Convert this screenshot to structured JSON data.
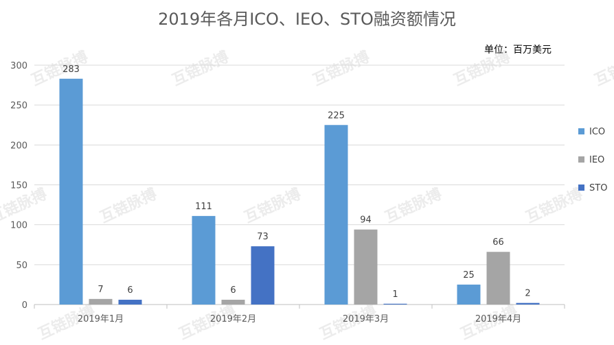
{
  "chart_data": {
    "type": "bar",
    "title": "2019年各月ICO、IEO、STO融资额情况",
    "unit_label": "单位：百万美元",
    "categories": [
      "2019年1月",
      "2019年2月",
      "2019年3月",
      "2019年4月"
    ],
    "series": [
      {
        "name": "ICO",
        "values": [
          283,
          111,
          225,
          25
        ],
        "color": "#5B9BD5"
      },
      {
        "name": "IEO",
        "values": [
          7,
          6,
          94,
          66
        ],
        "color": "#A5A5A5"
      },
      {
        "name": "STO",
        "values": [
          6,
          73,
          1,
          2
        ],
        "color": "#4472C4"
      }
    ],
    "ylim": [
      0,
      300
    ],
    "yticks": [
      0,
      50,
      100,
      150,
      200,
      250,
      300
    ],
    "grid": true,
    "legend": "right"
  },
  "watermark": {
    "text": "互链脉搏"
  }
}
